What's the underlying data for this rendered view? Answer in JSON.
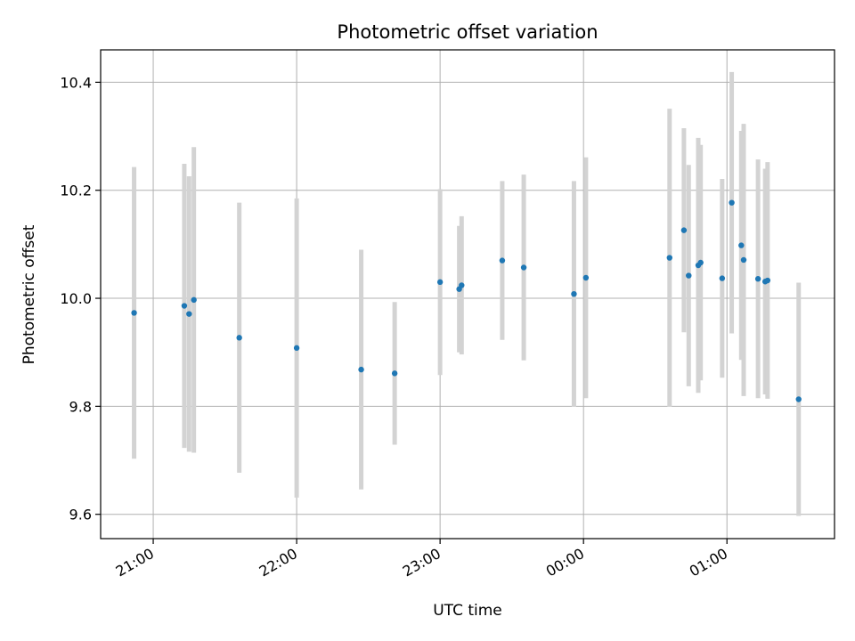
{
  "chart_data": {
    "type": "scatter",
    "title": "Photometric offset variation",
    "xlabel": "UTC time",
    "ylabel": "Photometric offset",
    "x_axis_type": "time",
    "x_ticks": [
      "21:00",
      "22:00",
      "23:00",
      "00:00",
      "01:00"
    ],
    "y_ticks": [
      "9.6",
      "9.8",
      "10.0",
      "10.2",
      "10.4"
    ],
    "y_tick_values": [
      9.6,
      9.8,
      10.0,
      10.2,
      10.4
    ],
    "xlim": [
      "20:38",
      "01:45"
    ],
    "ylim": [
      9.555,
      10.46
    ],
    "grid": true,
    "colors": {
      "marker": "#1f77b4",
      "errorbar": "#d3d3d3",
      "grid": "#b0b0b0"
    },
    "points": [
      {
        "x": "20:52",
        "y": 9.973,
        "yerr": 0.27
      },
      {
        "x": "21:13",
        "y": 9.986,
        "yerr": 0.263
      },
      {
        "x": "21:15",
        "y": 9.971,
        "yerr": 0.255
      },
      {
        "x": "21:17",
        "y": 9.997,
        "yerr": 0.283
      },
      {
        "x": "21:36",
        "y": 9.927,
        "yerr": 0.25
      },
      {
        "x": "22:00",
        "y": 9.908,
        "yerr": 0.277
      },
      {
        "x": "22:27",
        "y": 9.868,
        "yerr": 0.222
      },
      {
        "x": "22:41",
        "y": 9.861,
        "yerr": 0.132
      },
      {
        "x": "23:00",
        "y": 10.03,
        "yerr": 0.172
      },
      {
        "x": "23:08",
        "y": 10.017,
        "yerr": 0.117
      },
      {
        "x": "23:09",
        "y": 10.024,
        "yerr": 0.128
      },
      {
        "x": "23:26",
        "y": 10.07,
        "yerr": 0.147
      },
      {
        "x": "23:35",
        "y": 10.057,
        "yerr": 0.172
      },
      {
        "x": "23:56",
        "y": 10.008,
        "yerr": 0.209
      },
      {
        "x": "00:01",
        "y": 10.038,
        "yerr": 0.223
      },
      {
        "x": "00:36",
        "y": 10.075,
        "yerr": 0.276
      },
      {
        "x": "00:42",
        "y": 10.126,
        "yerr": 0.189
      },
      {
        "x": "00:44",
        "y": 10.042,
        "yerr": 0.205
      },
      {
        "x": "00:48",
        "y": 10.061,
        "yerr": 0.236
      },
      {
        "x": "00:49",
        "y": 10.066,
        "yerr": 0.218
      },
      {
        "x": "00:58",
        "y": 10.037,
        "yerr": 0.184
      },
      {
        "x": "01:02",
        "y": 10.177,
        "yerr": 0.242
      },
      {
        "x": "01:06",
        "y": 10.098,
        "yerr": 0.212
      },
      {
        "x": "01:07",
        "y": 10.071,
        "yerr": 0.252
      },
      {
        "x": "01:13",
        "y": 10.036,
        "yerr": 0.221
      },
      {
        "x": "01:16",
        "y": 10.031,
        "yerr": 0.209
      },
      {
        "x": "01:17",
        "y": 10.033,
        "yerr": 0.219
      },
      {
        "x": "01:30",
        "y": 9.813,
        "yerr": 0.216
      }
    ]
  }
}
